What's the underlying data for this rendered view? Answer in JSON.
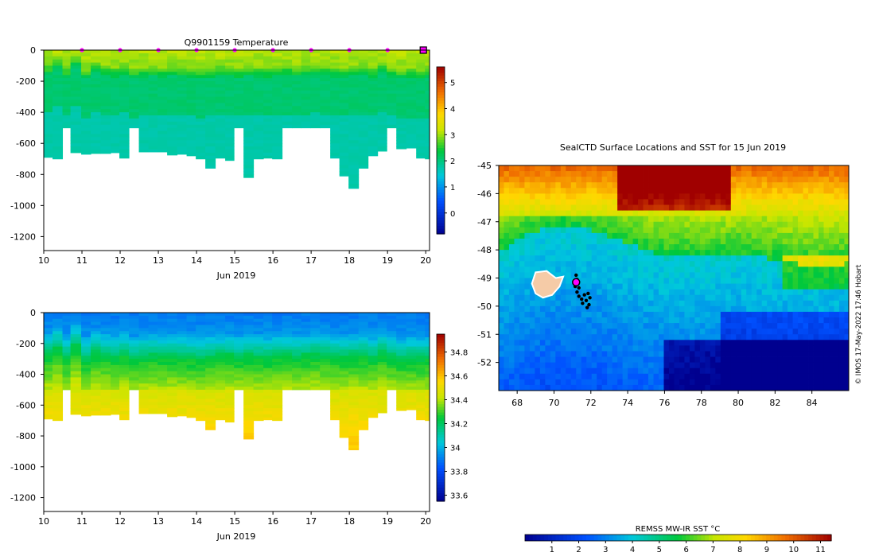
{
  "chart_data": [
    {
      "type": "heatmap",
      "title": "Q9901159  Temperature",
      "variable": "temperature",
      "xlabel": "Jun 2019",
      "xticks": [
        10,
        11,
        12,
        13,
        14,
        15,
        16,
        17,
        18,
        19,
        20
      ],
      "xlim": [
        10,
        20.1
      ],
      "yticks": [
        0,
        -200,
        -400,
        -600,
        -800,
        -1000,
        -1200
      ],
      "ylim": [
        -1290,
        0
      ],
      "colorbar": {
        "min": -0.8,
        "max": 5.6,
        "ticks": [
          0,
          1,
          2,
          3,
          4,
          5
        ]
      },
      "profile_markers": [
        11,
        12,
        13,
        14,
        15,
        16,
        17,
        18,
        19
      ],
      "latest_marker": 20,
      "profiles": {
        "times": [
          10,
          10.23,
          10.49,
          10.7,
          10.98,
          11.23,
          11.49,
          11.75,
          11.98,
          12.23,
          12.49,
          12.74,
          12.98,
          13.23,
          13.49,
          13.74,
          13.98,
          14.23,
          14.49,
          14.75,
          14.98,
          15.23,
          15.49,
          15.75,
          15.98,
          16.24,
          16.5,
          16.74,
          16.98,
          17.23,
          17.5,
          17.74,
          17.98,
          18.24,
          18.49,
          18.74,
          18.98,
          19.23,
          19.49,
          19.75,
          19.98,
          20.1
        ],
        "max_depth": [
          690,
          700,
          500,
          660,
          670,
          665,
          665,
          660,
          695,
          500,
          655,
          655,
          655,
          675,
          670,
          680,
          700,
          760,
          695,
          710,
          500,
          820,
          700,
          695,
          700,
          500,
          500,
          500,
          500,
          500,
          695,
          810,
          890,
          760,
          680,
          650,
          500,
          635,
          630,
          695,
          700,
          700
        ],
        "thermocline_depth": [
          160,
          120,
          180,
          110,
          190,
          150,
          165,
          175,
          160,
          185,
          175,
          170,
          180,
          170,
          175,
          180,
          190,
          175,
          170,
          165,
          180,
          170,
          175,
          180,
          170,
          165,
          175,
          170,
          160,
          165,
          175,
          180,
          170,
          165,
          180,
          150,
          175,
          190,
          185,
          190,
          185,
          190
        ]
      }
    },
    {
      "type": "heatmap",
      "title": "",
      "variable": "salinity",
      "xlabel": "Jun 2019",
      "xticks": [
        10,
        11,
        12,
        13,
        14,
        15,
        16,
        17,
        18,
        19,
        20
      ],
      "xlim": [
        10,
        20.1
      ],
      "yticks": [
        0,
        -200,
        -400,
        -600,
        -800,
        -1000,
        -1200
      ],
      "ylim": [
        -1290,
        0
      ],
      "colorbar": {
        "min": 33.55,
        "max": 34.95,
        "ticks": [
          33.6,
          33.8,
          34,
          34.2,
          34.4,
          34.6,
          34.8
        ]
      },
      "uses_profiles_of": 0
    },
    {
      "type": "heatmap",
      "title": "SealCTD Surface Locations and SST for 15 Jun 2019",
      "xlabel": "",
      "ylabel": "",
      "xticks": [
        68,
        70,
        72,
        74,
        76,
        78,
        80,
        82,
        84
      ],
      "xlim": [
        67,
        86
      ],
      "yticks": [
        -45,
        -46,
        -47,
        -48,
        -49,
        -50,
        -51,
        -52
      ],
      "ylim": [
        -53,
        -45
      ],
      "colorbar": {
        "label": "REMSS MW-IR SST °C",
        "min": 0,
        "max": 11.4,
        "ticks": [
          1,
          2,
          3,
          4,
          5,
          6,
          7,
          8,
          9,
          10,
          11
        ]
      },
      "seal_locations": [
        {
          "lon": 71.2,
          "lat": -48.9
        },
        {
          "lon": 71.25,
          "lat": -49.05
        },
        {
          "lon": 71.3,
          "lat": -49.2
        },
        {
          "lon": 71.35,
          "lat": -49.35
        },
        {
          "lon": 71.25,
          "lat": -49.5
        },
        {
          "lon": 71.35,
          "lat": -49.65
        },
        {
          "lon": 71.5,
          "lat": -49.75
        },
        {
          "lon": 71.55,
          "lat": -49.9
        },
        {
          "lon": 71.75,
          "lat": -49.8
        },
        {
          "lon": 71.9,
          "lat": -49.95
        },
        {
          "lon": 71.8,
          "lat": -50.05
        },
        {
          "lon": 71.65,
          "lat": -49.6
        },
        {
          "lon": 71.85,
          "lat": -49.55
        },
        {
          "lon": 71.95,
          "lat": -49.7
        },
        {
          "lon": 71.15,
          "lat": -49.3
        }
      ],
      "current_location": {
        "lon": 71.2,
        "lat": -49.15
      }
    }
  ],
  "credit": "© IMOS 17-May-2022 17:46 Hobart"
}
